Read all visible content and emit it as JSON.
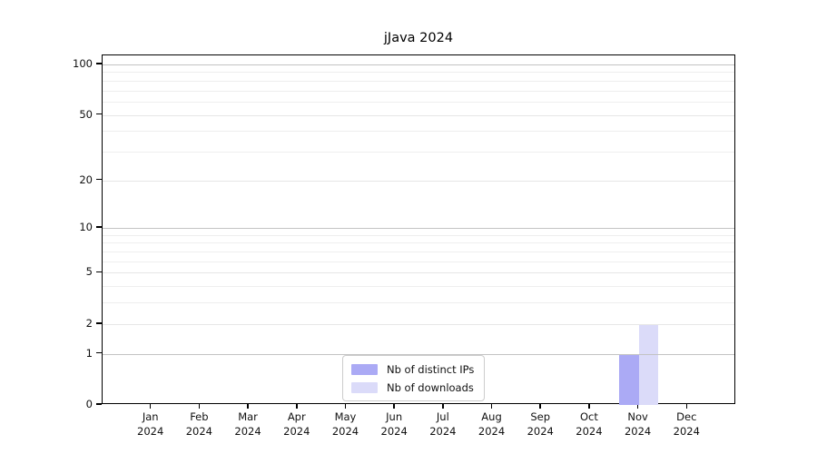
{
  "chart_data": {
    "type": "bar",
    "title": "jJava 2024",
    "categories": [
      {
        "month": "Jan",
        "year": "2024"
      },
      {
        "month": "Feb",
        "year": "2024"
      },
      {
        "month": "Mar",
        "year": "2024"
      },
      {
        "month": "Apr",
        "year": "2024"
      },
      {
        "month": "May",
        "year": "2024"
      },
      {
        "month": "Jun",
        "year": "2024"
      },
      {
        "month": "Jul",
        "year": "2024"
      },
      {
        "month": "Aug",
        "year": "2024"
      },
      {
        "month": "Sep",
        "year": "2024"
      },
      {
        "month": "Oct",
        "year": "2024"
      },
      {
        "month": "Nov",
        "year": "2024"
      },
      {
        "month": "Dec",
        "year": "2024"
      }
    ],
    "series": [
      {
        "name": "Nb of distinct IPs",
        "color": "#abaaf5",
        "values": [
          0,
          0,
          0,
          0,
          0,
          0,
          0,
          0,
          0,
          0,
          1,
          0
        ]
      },
      {
        "name": "Nb of downloads",
        "color": "#dbdbf9",
        "values": [
          0,
          0,
          0,
          0,
          0,
          0,
          0,
          0,
          0,
          0,
          2,
          0
        ]
      }
    ],
    "y_axis": {
      "scale": "log1p",
      "ylim": [
        0,
        100
      ],
      "major_ticks": [
        0,
        1,
        2,
        5,
        10,
        20,
        50,
        100
      ],
      "minor_gridlines": [
        3,
        4,
        6,
        7,
        8,
        9,
        30,
        40,
        60,
        70,
        80,
        90
      ],
      "emphasized_gridlines": [
        1,
        10,
        100
      ]
    },
    "xlabel": "",
    "ylabel": "",
    "grid": true,
    "legend_position": "bottom-center"
  },
  "colors": {
    "distinct_ips": "#abaaf5",
    "downloads": "#dbdbf9",
    "gridline_major": "#c3c3c3",
    "gridline_minor": "#eeeeee",
    "spine": "#000000"
  }
}
